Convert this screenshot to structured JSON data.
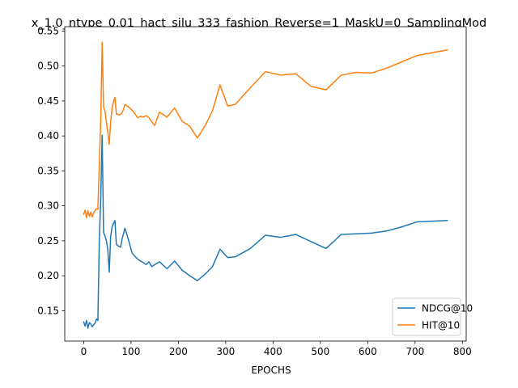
{
  "chart_data": {
    "type": "line",
    "title": "x_1.0_ntype_0.01_hact_silu_333_fashion_Reverse=1_MaskU=0_SamplingMod",
    "xlabel": "EPOCHS",
    "ylabel": "",
    "xlim": [
      -40,
      808
    ],
    "ylim": [
      0.1065,
      0.5563
    ],
    "xticks": [
      0,
      100,
      200,
      300,
      400,
      500,
      600,
      700,
      800
    ],
    "yticks": [
      0.15,
      0.2,
      0.25,
      0.3,
      0.35,
      0.4,
      0.45,
      0.5,
      0.55
    ],
    "grid": false,
    "legend_position": "lower right",
    "series": [
      {
        "name": "NDCG@10",
        "color": "#1f77b4",
        "x": [
          0,
          3,
          6,
          9,
          12,
          15,
          18,
          21,
          24,
          27,
          30,
          33,
          36,
          39,
          42,
          45,
          48,
          51,
          54,
          57,
          60,
          63,
          66,
          69,
          72,
          75,
          78,
          81,
          84,
          87,
          90,
          96,
          102,
          108,
          114,
          120,
          126,
          132,
          138,
          144,
          150,
          160,
          176,
          192,
          208,
          224,
          240,
          256,
          272,
          288,
          304,
          320,
          352,
          384,
          416,
          448,
          480,
          512,
          544,
          576,
          608,
          640,
          672,
          704,
          736,
          768
        ],
        "y": [
          0.134,
          0.128,
          0.136,
          0.125,
          0.133,
          0.131,
          0.127,
          0.13,
          0.132,
          0.138,
          0.136,
          0.25,
          0.31,
          0.401,
          0.262,
          0.257,
          0.25,
          0.237,
          0.205,
          0.256,
          0.27,
          0.275,
          0.279,
          0.245,
          0.243,
          0.242,
          0.241,
          0.252,
          0.26,
          0.268,
          0.262,
          0.248,
          0.233,
          0.228,
          0.224,
          0.221,
          0.219,
          0.216,
          0.22,
          0.213,
          0.216,
          0.22,
          0.21,
          0.221,
          0.208,
          0.2,
          0.193,
          0.202,
          0.213,
          0.238,
          0.226,
          0.227,
          0.239,
          0.258,
          0.255,
          0.259,
          0.249,
          0.239,
          0.259,
          0.26,
          0.261,
          0.264,
          0.27,
          0.277,
          0.278,
          0.279
        ]
      },
      {
        "name": "HIT@10",
        "color": "#ff7f0e",
        "x": [
          0,
          3,
          6,
          9,
          12,
          15,
          18,
          21,
          24,
          27,
          30,
          33,
          36,
          39,
          42,
          45,
          48,
          51,
          54,
          57,
          60,
          63,
          66,
          69,
          72,
          75,
          78,
          81,
          84,
          87,
          90,
          96,
          102,
          108,
          114,
          120,
          126,
          132,
          138,
          144,
          150,
          160,
          176,
          192,
          208,
          224,
          240,
          256,
          272,
          288,
          304,
          320,
          352,
          384,
          416,
          448,
          480,
          512,
          544,
          576,
          608,
          640,
          672,
          704,
          736,
          768
        ],
        "y": [
          0.288,
          0.294,
          0.283,
          0.293,
          0.285,
          0.291,
          0.284,
          0.29,
          0.293,
          0.296,
          0.295,
          0.36,
          0.42,
          0.534,
          0.441,
          0.436,
          0.42,
          0.405,
          0.388,
          0.42,
          0.44,
          0.449,
          0.455,
          0.431,
          0.431,
          0.43,
          0.431,
          0.433,
          0.438,
          0.445,
          0.444,
          0.441,
          0.437,
          0.432,
          0.426,
          0.428,
          0.427,
          0.429,
          0.426,
          0.42,
          0.415,
          0.434,
          0.427,
          0.44,
          0.421,
          0.414,
          0.397,
          0.414,
          0.436,
          0.473,
          0.443,
          0.445,
          0.469,
          0.492,
          0.487,
          0.489,
          0.471,
          0.466,
          0.487,
          0.491,
          0.49,
          0.497,
          0.506,
          0.515,
          0.519,
          0.523
        ]
      }
    ]
  }
}
